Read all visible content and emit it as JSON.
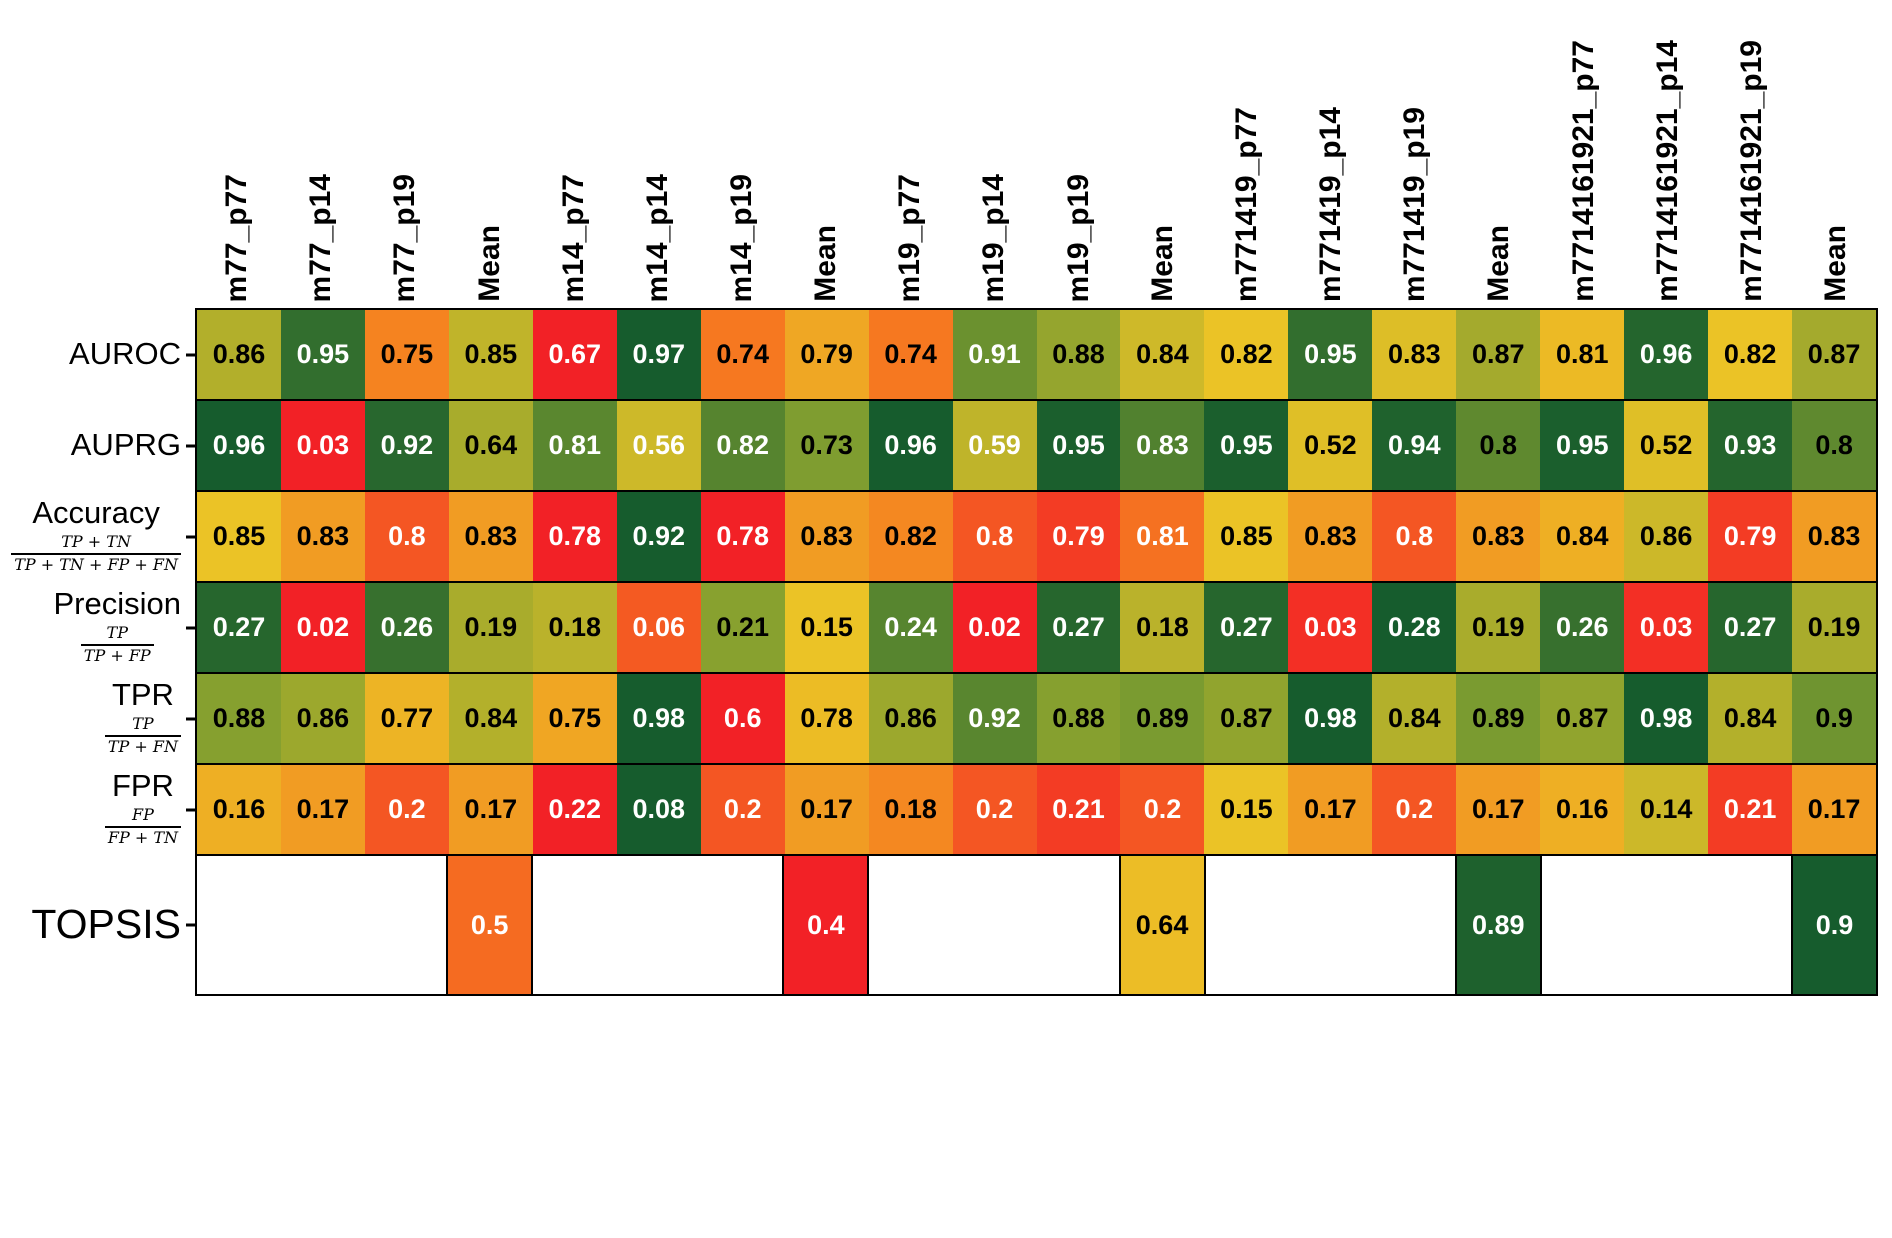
{
  "chart_data": {
    "type": "heatmap",
    "columns": [
      "m77_p77",
      "m77_p14",
      "m77_p19",
      "Mean",
      "m14_p77",
      "m14_p14",
      "m14_p19",
      "Mean",
      "m19_p77",
      "m19_p14",
      "m19_p19",
      "Mean",
      "m771419_p77",
      "m771419_p14",
      "m771419_p19",
      "Mean",
      "m7714161921_p77",
      "m7714161921_p14",
      "m7714161921_p19",
      "Mean"
    ],
    "group_size": 4,
    "colormap_stops": [
      [
        0,
        "#f22126"
      ],
      [
        0.25,
        "#f67e20"
      ],
      [
        0.5,
        "#ebc326"
      ],
      [
        0.75,
        "#809e30"
      ],
      [
        1,
        "#165c2d"
      ]
    ],
    "rows": [
      {
        "label": "AUROC",
        "formula": null,
        "invert": false,
        "topsis": false,
        "values": [
          0.86,
          0.95,
          0.75,
          0.85,
          0.67,
          0.97,
          0.74,
          0.79,
          0.74,
          0.91,
          0.88,
          0.84,
          0.82,
          0.95,
          0.83,
          0.87,
          0.81,
          0.96,
          0.82,
          0.87
        ],
        "fg": [
          "b",
          "w",
          "b",
          "b",
          "w",
          "w",
          "b",
          "b",
          "b",
          "w",
          "b",
          "b",
          "b",
          "w",
          "b",
          "b",
          "b",
          "w",
          "b",
          "b"
        ]
      },
      {
        "label": "AUPRG",
        "formula": null,
        "invert": false,
        "topsis": false,
        "values": [
          0.96,
          0.03,
          0.92,
          0.64,
          0.81,
          0.56,
          0.82,
          0.73,
          0.96,
          0.59,
          0.95,
          0.83,
          0.95,
          0.52,
          0.94,
          0.8,
          0.95,
          0.52,
          0.93,
          0.8
        ],
        "fg": [
          "w",
          "w",
          "w",
          "b",
          "w",
          "w",
          "w",
          "b",
          "w",
          "w",
          "w",
          "w",
          "w",
          "b",
          "w",
          "b",
          "w",
          "b",
          "w",
          "b"
        ]
      },
      {
        "label": "Accuracy",
        "formula": {
          "num": "TP + TN",
          "den": "TP + TN + FP + FN"
        },
        "invert": false,
        "topsis": false,
        "values": [
          0.85,
          0.83,
          0.8,
          0.83,
          0.78,
          0.92,
          0.78,
          0.83,
          0.82,
          0.8,
          0.79,
          0.81,
          0.85,
          0.83,
          0.8,
          0.83,
          0.84,
          0.86,
          0.79,
          0.83
        ],
        "fg": [
          "b",
          "b",
          "w",
          "b",
          "w",
          "w",
          "w",
          "b",
          "b",
          "w",
          "w",
          "w",
          "b",
          "b",
          "w",
          "b",
          "b",
          "b",
          "w",
          "b"
        ]
      },
      {
        "label": "Precision",
        "formula": {
          "num": "TP",
          "den": "TP + FP"
        },
        "invert": false,
        "topsis": false,
        "values": [
          0.27,
          0.02,
          0.26,
          0.19,
          0.18,
          0.06,
          0.21,
          0.15,
          0.24,
          0.02,
          0.27,
          0.18,
          0.27,
          0.03,
          0.28,
          0.19,
          0.26,
          0.03,
          0.27,
          0.19
        ],
        "fg": [
          "w",
          "w",
          "w",
          "b",
          "b",
          "w",
          "b",
          "b",
          "w",
          "w",
          "w",
          "b",
          "w",
          "w",
          "w",
          "b",
          "w",
          "w",
          "w",
          "b"
        ]
      },
      {
        "label": "TPR",
        "formula": {
          "num": "TP",
          "den": "TP + FN"
        },
        "invert": false,
        "topsis": false,
        "values": [
          0.88,
          0.86,
          0.77,
          0.84,
          0.75,
          0.98,
          0.6,
          0.78,
          0.86,
          0.92,
          0.88,
          0.89,
          0.87,
          0.98,
          0.84,
          0.89,
          0.87,
          0.98,
          0.84,
          0.9
        ],
        "fg": [
          "b",
          "b",
          "b",
          "b",
          "b",
          "w",
          "w",
          "b",
          "b",
          "w",
          "b",
          "b",
          "b",
          "w",
          "b",
          "b",
          "b",
          "w",
          "b",
          "b"
        ]
      },
      {
        "label": "FPR",
        "formula": {
          "num": "FP",
          "den": "FP + TN"
        },
        "invert": true,
        "topsis": false,
        "values": [
          0.16,
          0.17,
          0.2,
          0.17,
          0.22,
          0.08,
          0.2,
          0.17,
          0.18,
          0.2,
          0.21,
          0.2,
          0.15,
          0.17,
          0.2,
          0.17,
          0.16,
          0.14,
          0.21,
          0.17
        ],
        "fg": [
          "b",
          "b",
          "w",
          "b",
          "w",
          "w",
          "w",
          "b",
          "b",
          "w",
          "w",
          "w",
          "b",
          "b",
          "w",
          "b",
          "b",
          "b",
          "w",
          "b"
        ]
      },
      {
        "label": "TOPSIS",
        "formula": null,
        "invert": false,
        "topsis": true,
        "values": [
          null,
          null,
          null,
          0.5,
          null,
          null,
          null,
          0.4,
          null,
          null,
          null,
          0.64,
          null,
          null,
          null,
          0.89,
          null,
          null,
          null,
          0.9
        ],
        "fg": [
          null,
          null,
          null,
          "w",
          null,
          null,
          null,
          "w",
          null,
          null,
          null,
          "b",
          null,
          null,
          null,
          "w",
          null,
          null,
          null,
          "w"
        ]
      }
    ]
  }
}
